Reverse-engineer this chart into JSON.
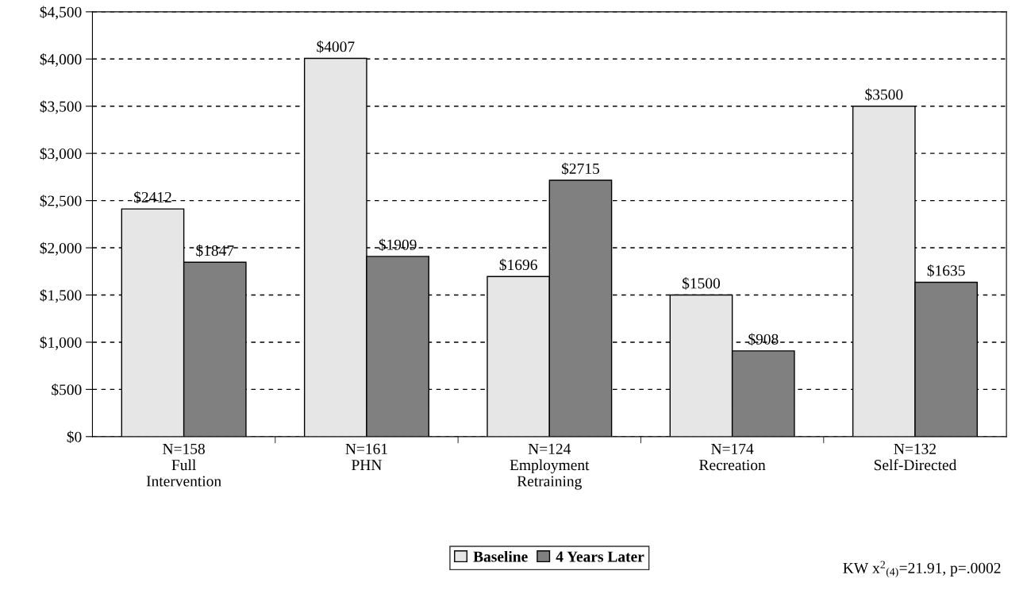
{
  "chart_data": {
    "type": "bar",
    "categories": [
      "N=158\nFull\nIntervention",
      "N=161\nPHN",
      "N=124\nEmployment\nRetraining",
      "N=174\nRecreation",
      "N=132\nSelf-Directed"
    ],
    "series": [
      {
        "name": "Baseline",
        "color": "#e6e6e6",
        "values": [
          2412,
          4007,
          1696,
          1500,
          3500
        ],
        "value_labels": [
          "$2412",
          "$4007",
          "$1696",
          "$1500",
          "$3500"
        ]
      },
      {
        "name": "4 Years Later",
        "color": "#808080",
        "values": [
          1847,
          1909,
          2715,
          908,
          1635
        ],
        "value_labels": [
          "$1847",
          "$1909",
          "$2715",
          "$908",
          "$1635"
        ]
      }
    ],
    "ylim": [
      0,
      4500
    ],
    "yticks": [
      {
        "value": 0,
        "label": "$0"
      },
      {
        "value": 500,
        "label": "$500"
      },
      {
        "value": 1000,
        "label": "$1,000"
      },
      {
        "value": 1500,
        "label": "$1,500"
      },
      {
        "value": 2000,
        "label": "$2,000"
      },
      {
        "value": 2500,
        "label": "$2,500"
      },
      {
        "value": 3000,
        "label": "$3,000"
      },
      {
        "value": 3500,
        "label": "$3,500"
      },
      {
        "value": 4000,
        "label": "$4,000"
      },
      {
        "value": 4500,
        "label": "$4,500"
      }
    ],
    "grid": "y",
    "legend": "bottom",
    "annotations": [
      "KW x$^{2}$$_{(4)}$=21.91, p=.0002"
    ]
  }
}
